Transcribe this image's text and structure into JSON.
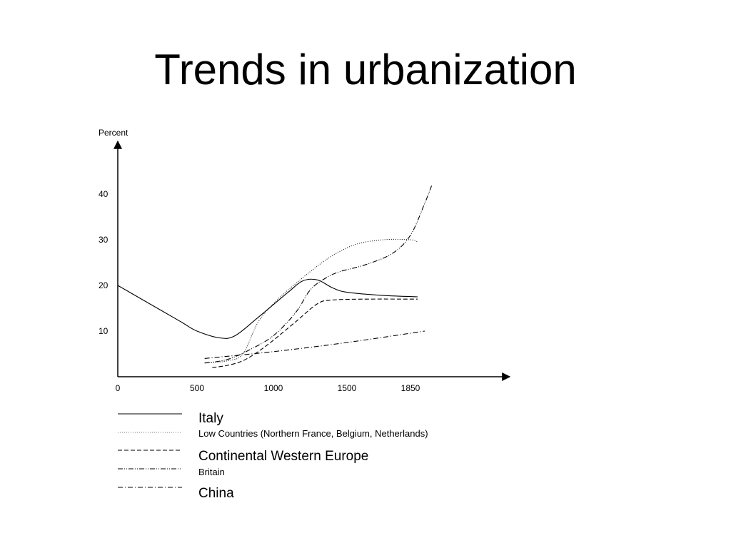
{
  "slide": {
    "title": "Trends in urbanization"
  },
  "chart_data": {
    "type": "line",
    "title": "",
    "ylabel": "Percent",
    "xlabel": "",
    "x_ticks": [
      0,
      500,
      1000,
      1500,
      1850
    ],
    "y_ticks": [
      10,
      20,
      30,
      40
    ],
    "ylim": [
      0,
      50
    ],
    "grid": false,
    "legend_placement": "bottom",
    "series": [
      {
        "name": "Italy",
        "style": "solid",
        "points": [
          [
            0,
            20
          ],
          [
            200,
            16
          ],
          [
            400,
            12
          ],
          [
            500,
            10
          ],
          [
            650,
            8.5
          ],
          [
            750,
            9
          ],
          [
            900,
            13
          ],
          [
            1100,
            18.5
          ],
          [
            1200,
            21
          ],
          [
            1300,
            21.2
          ],
          [
            1400,
            19.5
          ],
          [
            1500,
            18.5
          ],
          [
            1700,
            17.8
          ],
          [
            1900,
            17.5
          ]
        ]
      },
      {
        "name": "Low Countries (Northern France, Belgium, Netherlands)",
        "style": "dotted",
        "points": [
          [
            550,
            3
          ],
          [
            700,
            3.5
          ],
          [
            800,
            5
          ],
          [
            900,
            12
          ],
          [
            1000,
            16
          ],
          [
            1100,
            19
          ],
          [
            1250,
            23
          ],
          [
            1400,
            26.5
          ],
          [
            1550,
            29
          ],
          [
            1700,
            30
          ],
          [
            1850,
            30
          ],
          [
            1900,
            29.5
          ]
        ]
      },
      {
        "name": "Continental Western Europe",
        "style": "dashed",
        "points": [
          [
            600,
            2
          ],
          [
            700,
            2.5
          ],
          [
            800,
            3.5
          ],
          [
            900,
            5.5
          ],
          [
            1000,
            8
          ],
          [
            1150,
            12
          ],
          [
            1300,
            16
          ],
          [
            1400,
            16.8
          ],
          [
            1600,
            17
          ],
          [
            1900,
            17
          ]
        ]
      },
      {
        "name": "Britain",
        "style": "dash-dot-dot",
        "points": [
          [
            550,
            3
          ],
          [
            700,
            3.8
          ],
          [
            850,
            6
          ],
          [
            1000,
            9
          ],
          [
            1150,
            14
          ],
          [
            1250,
            19
          ],
          [
            1350,
            21.5
          ],
          [
            1450,
            23
          ],
          [
            1600,
            24.5
          ],
          [
            1750,
            27
          ],
          [
            1850,
            31
          ],
          [
            1950,
            38
          ],
          [
            2000,
            42
          ]
        ]
      },
      {
        "name": "China",
        "style": "dash-dot",
        "points": [
          [
            550,
            4
          ],
          [
            1000,
            5.5
          ],
          [
            1500,
            7.5
          ],
          [
            1950,
            10
          ]
        ]
      }
    ]
  }
}
